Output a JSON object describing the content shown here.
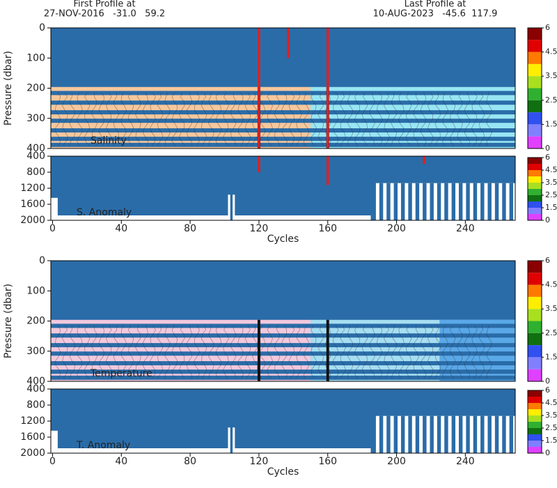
{
  "header": {
    "first_label": "First Profile at",
    "first_info": "27-NOV-2016   -31.0   59.2",
    "last_label": "Last Profile at",
    "last_info": "10-AUG-2023   -45.6  117.9"
  },
  "chart_data": [
    {
      "type": "section",
      "label": "Salinity",
      "ylabel": "Pressure (dbar)",
      "xlim": [
        -1,
        269
      ],
      "ylim": [
        0,
        400
      ],
      "yticks": [
        0,
        100,
        200,
        300,
        400
      ],
      "colorbar_ticks": [
        0,
        1.5,
        2.5,
        3.5,
        4.5,
        6
      ]
    },
    {
      "type": "anomaly",
      "label": "S. Anomaly",
      "xlabel": "Cycles",
      "xlim": [
        -1,
        269
      ],
      "xticks": [
        0,
        40,
        80,
        120,
        160,
        200,
        240
      ],
      "ylim": [
        400,
        2000
      ],
      "yticks": [
        400,
        800,
        1200,
        1600,
        2000
      ],
      "colorbar_ticks": [
        0,
        1.5,
        2.5,
        3.5,
        4.5,
        6
      ]
    },
    {
      "type": "section",
      "label": "Temperature",
      "ylabel": "Pressure (dbar)",
      "xlim": [
        -1,
        269
      ],
      "ylim": [
        0,
        400
      ],
      "yticks": [
        0,
        100,
        200,
        300,
        400
      ],
      "colorbar_ticks": [
        0,
        1.5,
        2.5,
        3.5,
        4.5,
        6
      ]
    },
    {
      "type": "anomaly",
      "label": "T. Anomaly",
      "xlabel": "Cycles",
      "xlim": [
        -1,
        269
      ],
      "xticks": [
        0,
        40,
        80,
        120,
        160,
        200,
        240
      ],
      "ylim": [
        400,
        2000
      ],
      "yticks": [
        400,
        800,
        1200,
        1600,
        2000
      ],
      "colorbar_ticks": [
        0,
        1.5,
        2.5,
        3.5,
        4.5,
        6
      ]
    }
  ]
}
